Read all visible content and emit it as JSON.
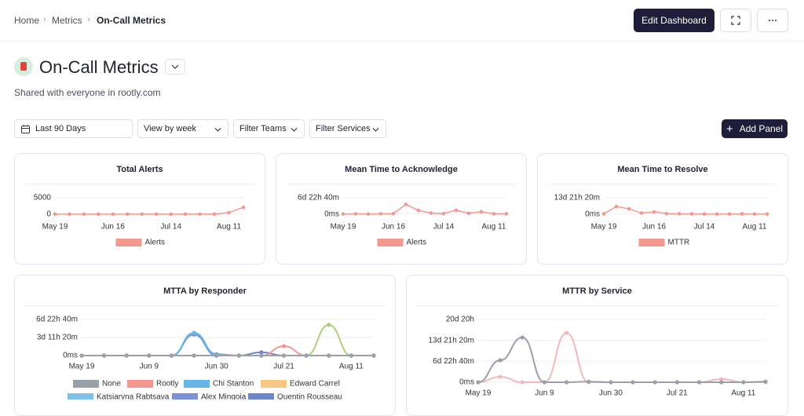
{
  "breadcrumbs": [
    "Home",
    "Metrics",
    "On-Call Metrics"
  ],
  "edit_button": "Edit Dashboard",
  "dashboard": {
    "title": "On-Call Metrics",
    "subtitle": "Shared with everyone in rootly.com"
  },
  "filters": [
    "Last 90 Days",
    "View by week",
    "Filter Teams",
    "Filter Services"
  ],
  "add_panel": "Add Panel",
  "panels": [
    {
      "title": "Total Alerts",
      "type": "line",
      "smooth": false,
      "grid": true,
      "categories": [
        "May 19",
        null,
        null,
        null,
        "Jun 16",
        null,
        null,
        null,
        "Jul 14",
        null,
        null,
        null,
        "Aug 11",
        null
      ],
      "ylim": [
        0,
        5000
      ],
      "yticks": [
        0,
        5000
      ],
      "series": [
        {
          "name": "Alerts",
          "color": "#f4978e",
          "values": [
            60,
            40,
            50,
            50,
            40,
            50,
            60,
            50,
            40,
            50,
            60,
            60,
            500,
            2100
          ]
        }
      ]
    },
    {
      "title": "Mean Time to Acknowledge",
      "type": "line",
      "smooth": false,
      "grid": true,
      "categories": [
        "May 19",
        null,
        null,
        null,
        "Jun 16",
        null,
        null,
        null,
        "Jul 14",
        null,
        null,
        null,
        "Aug 11",
        null
      ],
      "ylim": [
        0,
        10000
      ],
      "yticks": [
        {
          "value": 0,
          "label": "0ms"
        },
        {
          "value": 10000,
          "label": "6d 22h 40m"
        }
      ],
      "series": [
        {
          "name": "Alerts",
          "color": "#f4978e",
          "values": [
            200,
            300,
            200,
            300,
            400,
            6000,
            2300,
            700,
            400,
            2400,
            600,
            1500,
            300,
            300
          ]
        }
      ]
    },
    {
      "title": "Mean Time to Resolve",
      "type": "line",
      "smooth": false,
      "grid": true,
      "categories": [
        "May 19",
        null,
        null,
        null,
        "Jun 16",
        null,
        null,
        null,
        "Jul 14",
        null,
        null,
        null,
        "Aug 11",
        null
      ],
      "ylim": [
        0,
        20000
      ],
      "yticks": [
        {
          "value": 0,
          "label": "0ms"
        },
        {
          "value": 20000,
          "label": "13d 21h 20m"
        }
      ],
      "series": [
        {
          "name": "MTTR",
          "color": "#f4978e",
          "values": [
            400,
            9500,
            6600,
            1500,
            2800,
            800,
            600,
            500,
            400,
            300,
            300,
            500,
            300,
            300
          ]
        }
      ]
    },
    {
      "title": "MTTA by Responder",
      "type": "line",
      "smooth": true,
      "grid": true,
      "categories": [
        "May 19",
        null,
        null,
        "Jun 9",
        null,
        null,
        "Jun 30",
        null,
        null,
        "Jul 21",
        null,
        null,
        "Aug 11",
        null
      ],
      "ylim": [
        0,
        10000
      ],
      "yticks": [
        {
          "value": 0,
          "label": "0ms"
        },
        {
          "value": 5000,
          "label": "3d 11h 20m"
        },
        {
          "value": 10000,
          "label": "6d 22h 40m"
        }
      ],
      "series": [
        {
          "name": "None",
          "color": "#9aa0aa",
          "values": [
            0,
            0,
            0,
            0,
            0,
            0,
            0,
            0,
            0,
            0,
            0,
            0,
            0,
            0
          ]
        },
        {
          "name": "Rootly",
          "color": "#f4978e",
          "values": [
            0,
            0,
            0,
            0,
            0,
            0,
            0,
            0,
            0,
            2600,
            0,
            0,
            0,
            0
          ]
        },
        {
          "name": "Chi Stanton",
          "color": "#64b5e8",
          "values": [
            0,
            0,
            0,
            0,
            0,
            6300,
            400,
            0,
            0,
            0,
            0,
            0,
            0,
            0
          ]
        },
        {
          "name": "Edward Carrel",
          "color": "#f9c784",
          "values": [
            0,
            0,
            0,
            0,
            0,
            0,
            0,
            0,
            0,
            0,
            0,
            0,
            0,
            0
          ]
        },
        {
          "name": "Katsiaryna Rabtsava",
          "color": "#7ec3e6",
          "values": [
            0,
            0,
            0,
            0,
            0,
            0,
            0,
            0,
            0,
            0,
            0,
            0,
            0,
            0
          ]
        },
        {
          "name": "Alex Mingoia",
          "color": "#7b93d6",
          "values": [
            0,
            0,
            0,
            0,
            0,
            5800,
            0,
            0,
            0,
            0,
            0,
            0,
            0,
            0
          ]
        },
        {
          "name": "Quentin Rousseau",
          "color": "#6c87c9",
          "values": [
            0,
            0,
            0,
            0,
            0,
            0,
            0,
            0,
            900,
            0,
            0,
            0,
            0,
            0
          ]
        },
        {
          "color": "#a8d17a",
          "values": [
            0,
            0,
            0,
            0,
            0,
            0,
            0,
            0,
            0,
            0,
            0,
            8500,
            0,
            0
          ]
        }
      ]
    },
    {
      "title": "MTTR by Service",
      "type": "line",
      "smooth": true,
      "grid": true,
      "categories": [
        "May 19",
        null,
        null,
        "Jun 9",
        null,
        null,
        "Jun 30",
        null,
        null,
        "Jul 21",
        null,
        null,
        "Aug 11",
        null
      ],
      "ylim": [
        0,
        30000
      ],
      "yticks": [
        {
          "value": 0,
          "label": "0ms"
        },
        {
          "value": 10000,
          "label": "6d 22h 40m"
        },
        {
          "value": 20000,
          "label": "13d 21h 20m"
        },
        {
          "value": 30000,
          "label": "20d 20h"
        }
      ],
      "series": [
        {
          "color": "#9aa0aa",
          "values": [
            0,
            10500,
            21400,
            0,
            0,
            300,
            0,
            0,
            0,
            0,
            0,
            0,
            0,
            300
          ]
        },
        {
          "color": "#f4b8b8",
          "values": [
            0,
            2600,
            0,
            0,
            23600,
            0,
            0,
            0,
            0,
            0,
            0,
            1500,
            0,
            0
          ]
        }
      ]
    }
  ]
}
